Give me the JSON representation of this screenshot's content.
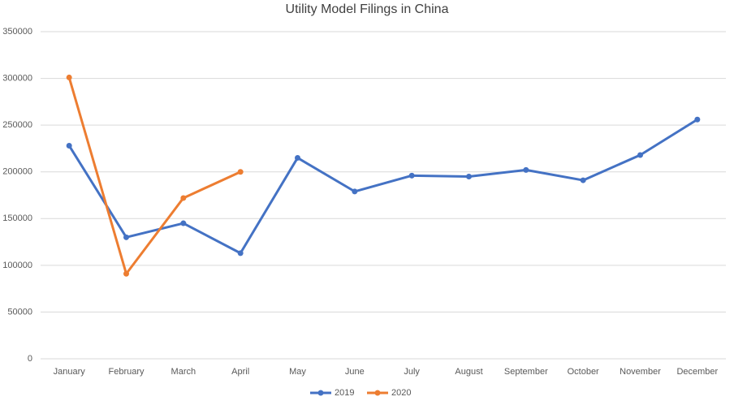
{
  "chart_data": {
    "type": "line",
    "title": "Utility Model Filings in China",
    "categories": [
      "January",
      "February",
      "March",
      "April",
      "May",
      "June",
      "July",
      "August",
      "September",
      "October",
      "November",
      "December"
    ],
    "series": [
      {
        "name": "2019",
        "color": "#4472c4",
        "values": [
          228000,
          130000,
          145000,
          113000,
          215000,
          179000,
          196000,
          195000,
          202000,
          191000,
          218000,
          256000
        ]
      },
      {
        "name": "2020",
        "color": "#ed7d31",
        "values": [
          301000,
          91000,
          172000,
          200000,
          null,
          null,
          null,
          null,
          null,
          null,
          null,
          null
        ]
      }
    ],
    "ylim": [
      0,
      350000
    ],
    "yticks": [
      0,
      50000,
      100000,
      150000,
      200000,
      250000,
      300000,
      350000
    ],
    "grid": true,
    "legend": "bottom"
  }
}
